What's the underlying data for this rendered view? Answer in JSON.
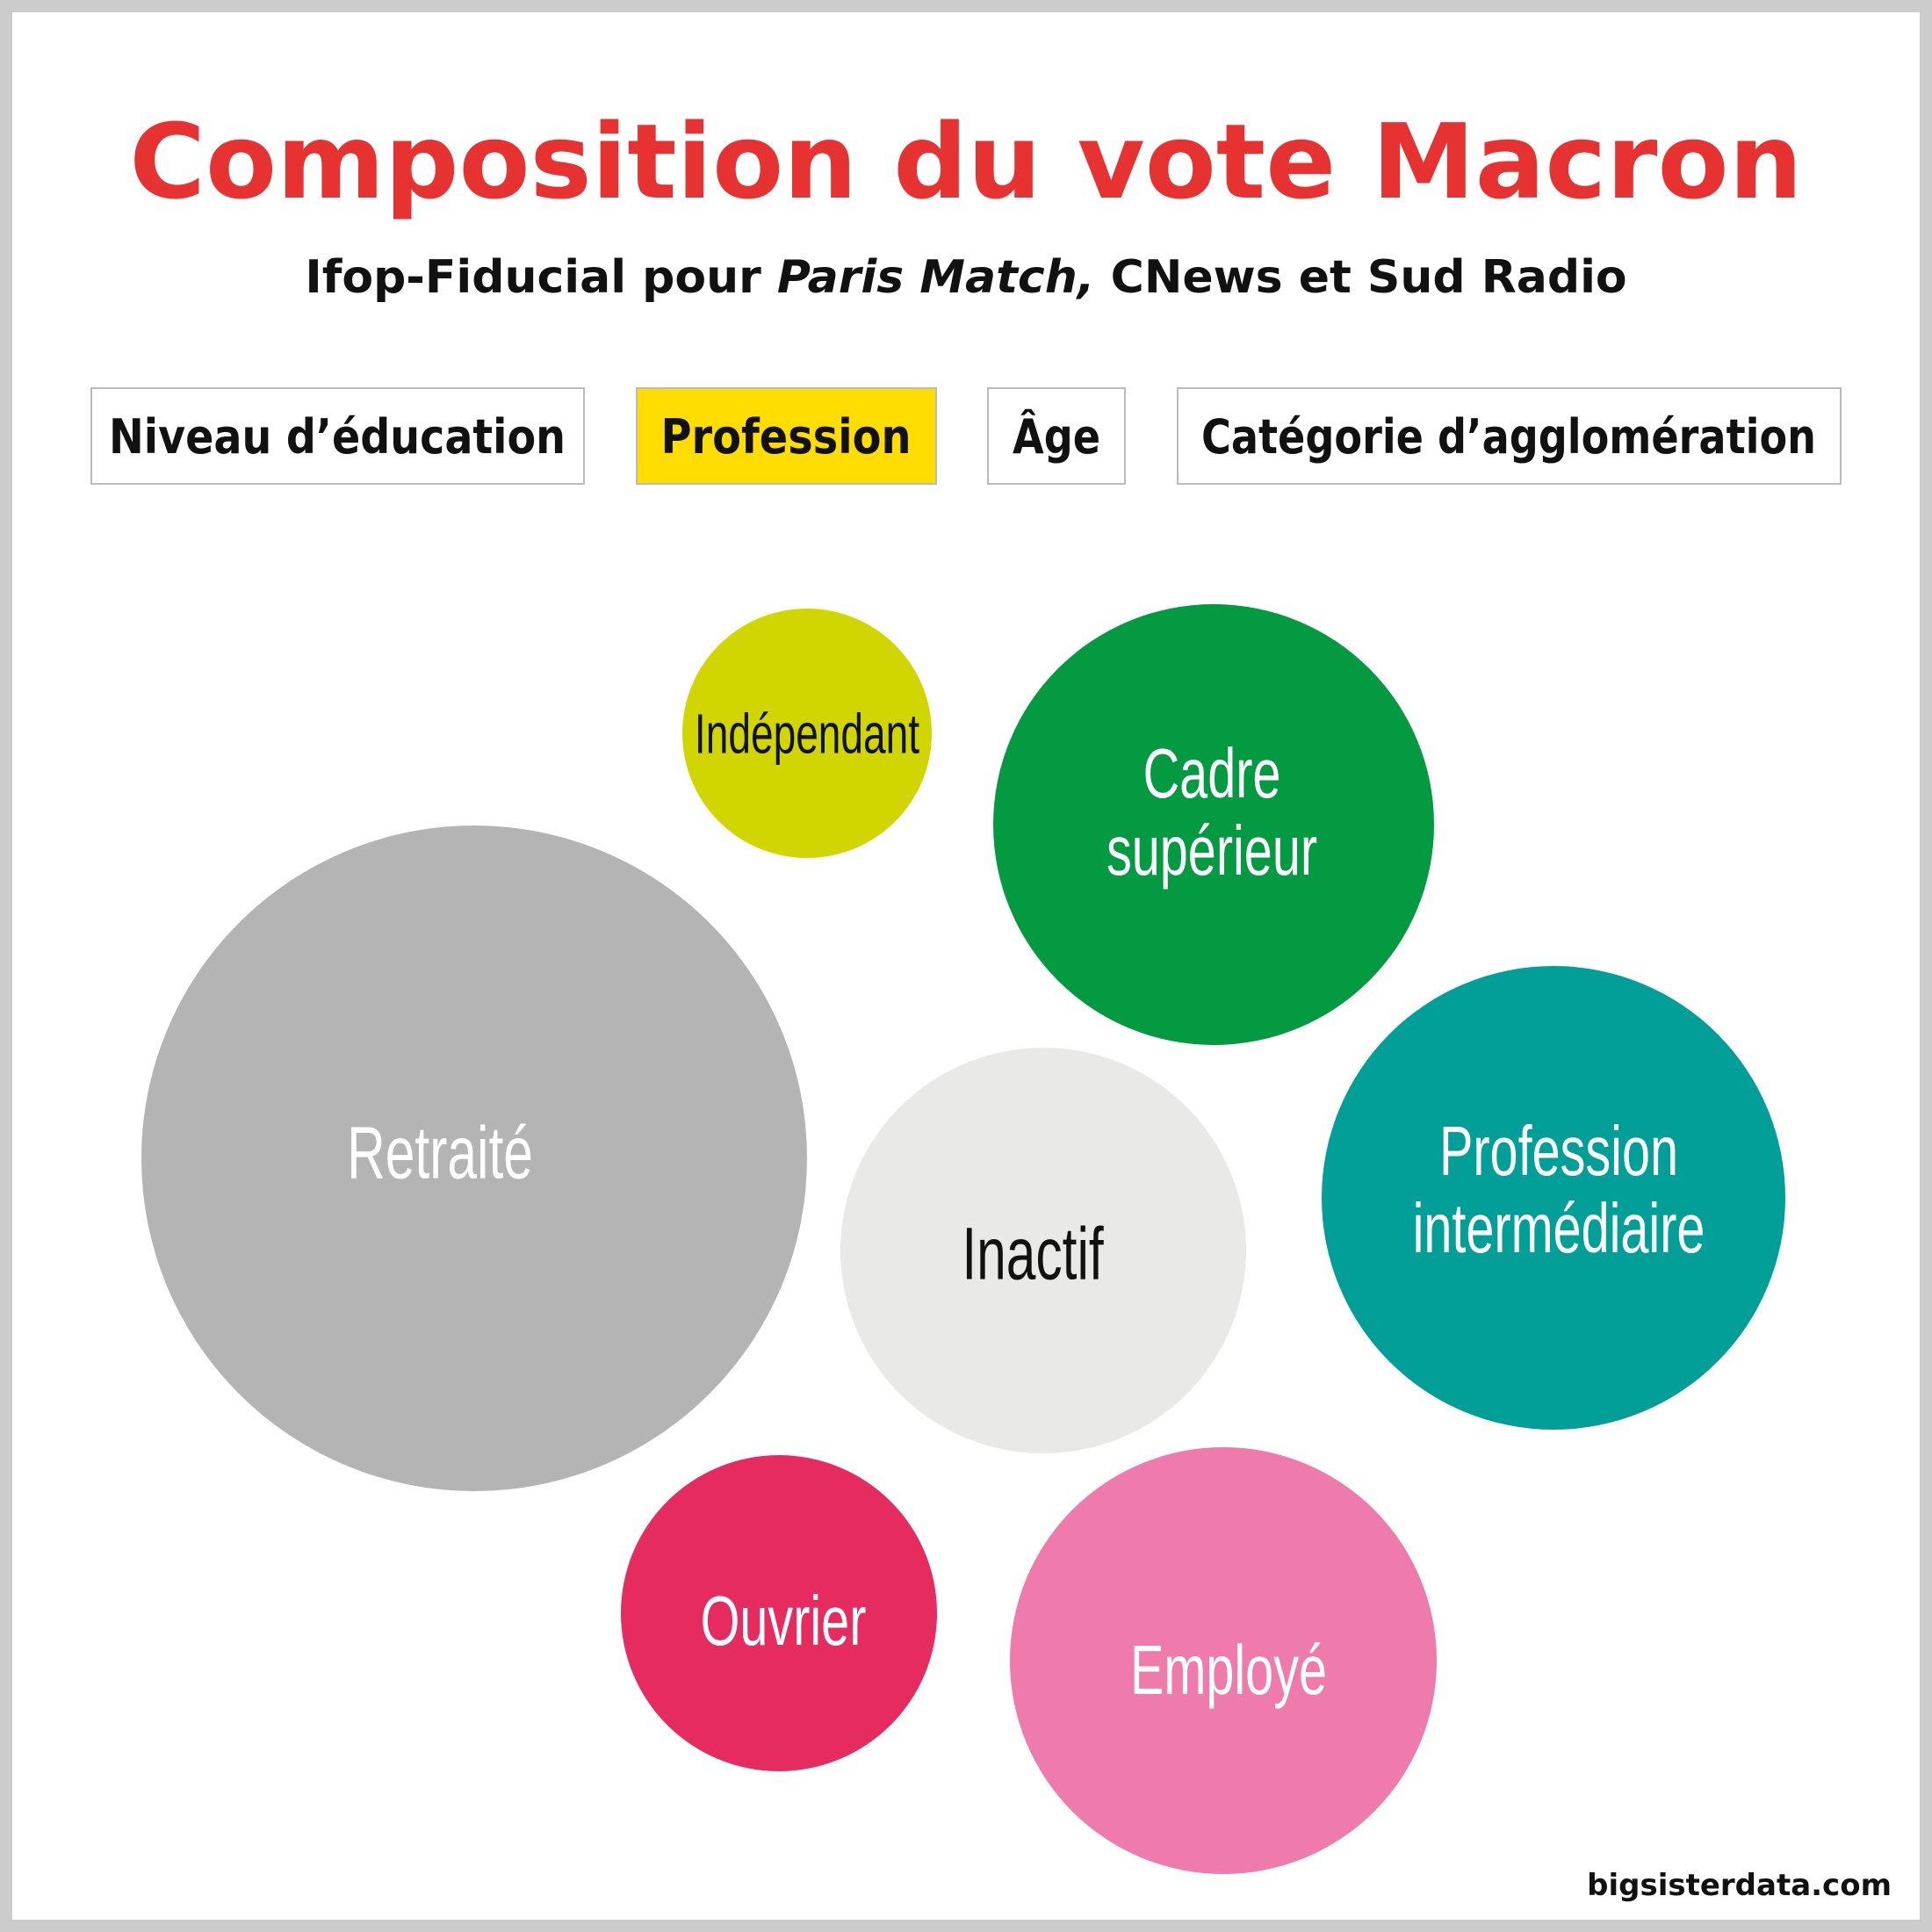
{
  "title": "Composition du vote Macron",
  "subtitle": {
    "part1": "Ifop-Fiducial pour ",
    "italic": "Paris Match,",
    "part2": " CNews et Sud Radio"
  },
  "tabs": [
    {
      "label": "Niveau d’éducation",
      "active": false
    },
    {
      "label": "Profession",
      "active": true
    },
    {
      "label": "Âge",
      "active": false
    },
    {
      "label": "Catégorie d’agglomération",
      "active": false
    }
  ],
  "colors": {
    "title": "#e63332",
    "active_tab": "#ffdd00",
    "border": "#cccccc"
  },
  "chart_data": {
    "type": "bubble",
    "bubbles": [
      {
        "label": [
          "Indépendant"
        ],
        "color": "#d2d600",
        "text_color": "#111111"
      },
      {
        "label": [
          "Cadre",
          "supérieur"
        ],
        "color": "#039a41",
        "text_color": "#ffffff"
      },
      {
        "label": [
          "Retraité"
        ],
        "color": "#b4b4b4",
        "text_color": "#ffffff"
      },
      {
        "label": [
          "Inactif"
        ],
        "color": "#e9e9e8",
        "text_color": "#111111"
      },
      {
        "label": [
          "Profession",
          "intermédiaire"
        ],
        "color": "#019f98",
        "text_color": "#ffffff"
      },
      {
        "label": [
          "Ouvrier"
        ],
        "color": "#e62b61",
        "text_color": "#ffffff"
      },
      {
        "label": [
          "Employé"
        ],
        "color": "#ee7bab",
        "text_color": "#ffffff"
      }
    ]
  },
  "footer": "bigsisterdata.com"
}
